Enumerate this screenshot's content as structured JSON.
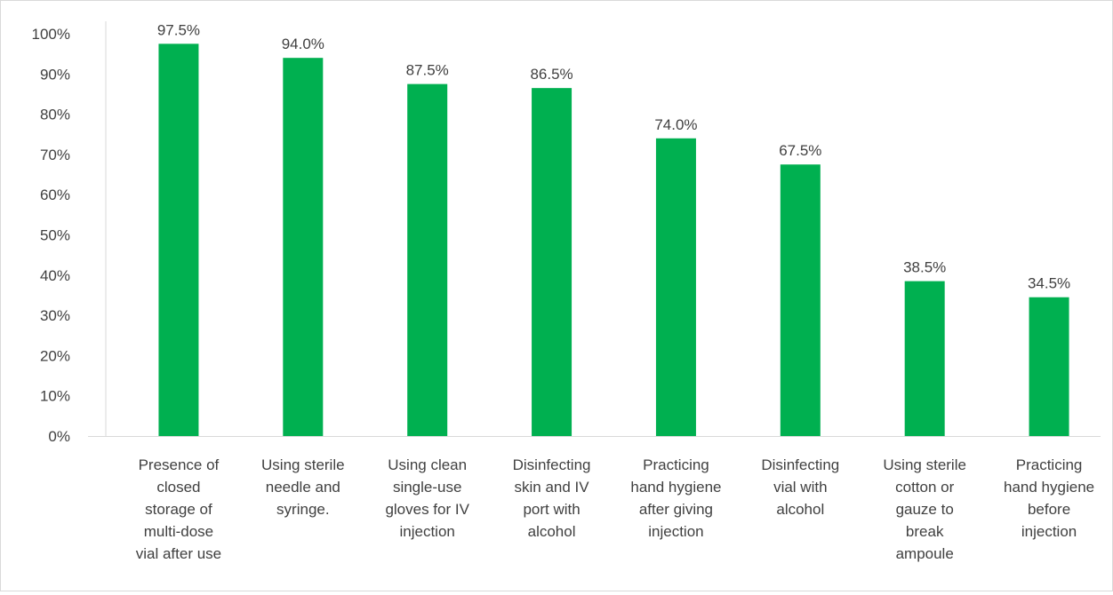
{
  "chart_data": {
    "type": "bar",
    "title": "",
    "xlabel": "",
    "ylabel": "",
    "ylim": [
      0,
      100
    ],
    "grid": false,
    "legend": "none",
    "y_ticks": [
      "0%",
      "10%",
      "20%",
      "30%",
      "40%",
      "50%",
      "60%",
      "70%",
      "80%",
      "90%",
      "100%"
    ],
    "bar_color": "#00B050",
    "categories": [
      [
        "Presence of",
        "closed",
        "storage of",
        "multi-dose",
        "vial after use"
      ],
      [
        "Using sterile",
        "needle and",
        "syringe."
      ],
      [
        "Using clean",
        "single-use",
        "gloves for IV",
        "injection"
      ],
      [
        "Disinfecting",
        "skin and IV",
        "port with",
        "alcohol"
      ],
      [
        "Practicing",
        "hand hygiene",
        "after giving",
        "injection"
      ],
      [
        "Disinfecting",
        "vial with",
        "alcohol"
      ],
      [
        "Using sterile",
        "cotton or",
        "gauze to",
        "break",
        "ampoule"
      ],
      [
        "Practicing",
        "hand hygiene",
        "before",
        "injection"
      ]
    ],
    "values": [
      97.5,
      94.0,
      87.5,
      86.5,
      74.0,
      67.5,
      38.5,
      34.5
    ],
    "data_labels": [
      "97.5%",
      "94.0%",
      "87.5%",
      "86.5%",
      "74.0%",
      "67.5%",
      "38.5%",
      "34.5%"
    ]
  }
}
